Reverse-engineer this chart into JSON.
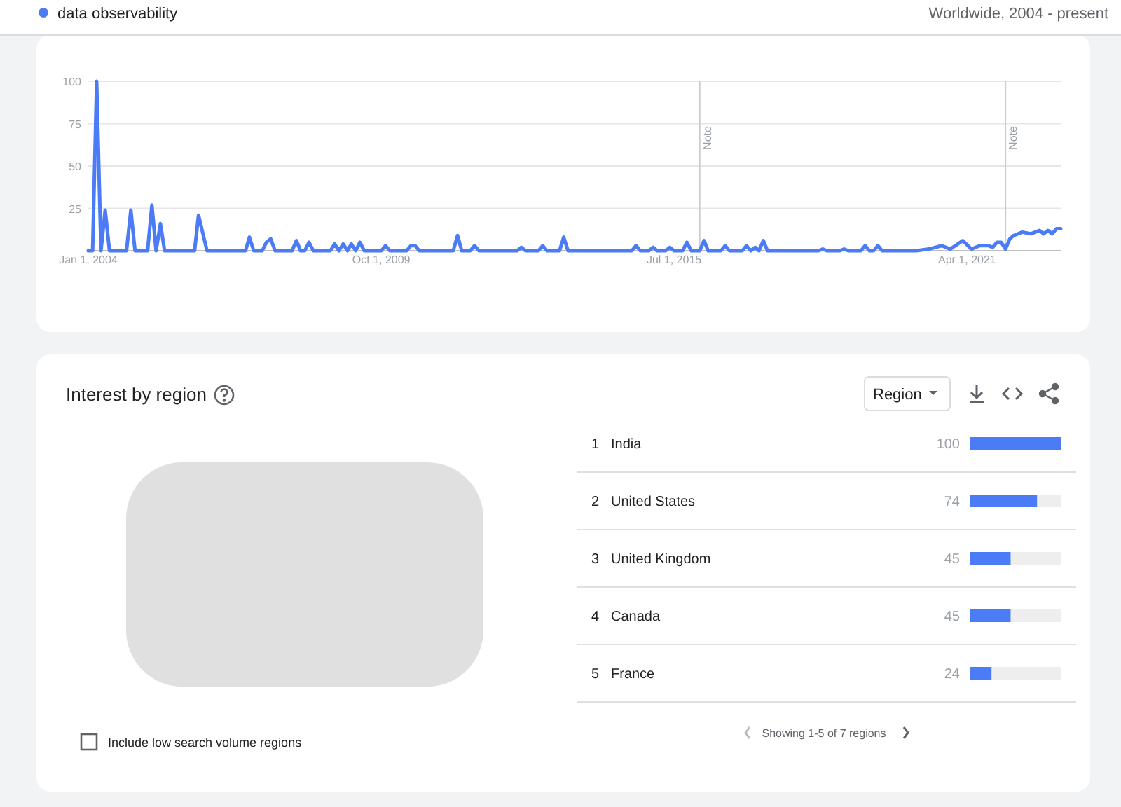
{
  "chart_data": [
    {
      "type": "line",
      "subtitle": "Worldwide, 2004 - present",
      "legend": "top left",
      "grid": "y",
      "x": [
        "2004-01",
        "2004-02",
        "2004-03",
        "2004-04",
        "2004-05",
        "2004-06",
        "2004-10",
        "2004-11",
        "2004-12",
        "2005-03",
        "2005-04",
        "2005-05",
        "2005-06",
        "2005-07",
        "2006-02",
        "2006-03",
        "2006-05",
        "2007-02",
        "2007-03",
        "2007-04",
        "2007-06",
        "2007-07",
        "2007-08",
        "2007-09",
        "2008-01",
        "2008-02",
        "2008-03",
        "2008-04",
        "2008-05",
        "2008-06",
        "2008-10",
        "2008-11",
        "2008-12",
        "2009-01",
        "2009-02",
        "2009-03",
        "2009-04",
        "2009-05",
        "2009-06",
        "2009-10",
        "2009-11",
        "2009-12",
        "2010-04",
        "2010-05",
        "2010-06",
        "2010-07",
        "2011-03",
        "2011-04",
        "2011-05",
        "2011-07",
        "2011-08",
        "2011-09",
        "2012-06",
        "2012-07",
        "2012-08",
        "2012-11",
        "2012-12",
        "2013-01",
        "2013-04",
        "2013-05",
        "2013-06",
        "2014-09",
        "2014-10",
        "2014-11",
        "2015-01",
        "2015-02",
        "2015-03",
        "2015-05",
        "2015-06",
        "2015-07",
        "2015-09",
        "2015-10",
        "2015-11",
        "2016-01",
        "2016-02",
        "2016-03",
        "2016-06",
        "2016-07",
        "2016-08",
        "2016-11",
        "2016-12",
        "2017-01",
        "2017-02",
        "2017-03",
        "2017-04",
        "2017-05",
        "2018-05",
        "2018-06",
        "2018-07",
        "2018-10",
        "2018-11",
        "2018-12",
        "2019-03",
        "2019-04",
        "2019-05",
        "2019-06",
        "2019-07",
        "2019-08",
        "2020-04",
        "2020-07",
        "2020-10",
        "2020-12",
        "2021-03",
        "2021-05",
        "2021-07",
        "2021-09",
        "2021-10",
        "2021-11",
        "2021-12",
        "2022-01",
        "2022-02",
        "2022-03",
        "2022-05",
        "2022-07",
        "2022-08",
        "2022-09",
        "2022-10",
        "2022-11",
        "2022-12",
        "2023-01",
        "2023-02"
      ],
      "series": [
        {
          "name": "data observability",
          "color": "#4b7bf5",
          "values": [
            0,
            0,
            100,
            0,
            24,
            0,
            0,
            24,
            0,
            0,
            27,
            0,
            16,
            0,
            0,
            21,
            0,
            0,
            8,
            0,
            0,
            5,
            7,
            0,
            0,
            6,
            0,
            0,
            5,
            0,
            0,
            4,
            0,
            4,
            0,
            4,
            0,
            5,
            0,
            0,
            3,
            0,
            0,
            3,
            3,
            0,
            0,
            9,
            0,
            0,
            3,
            0,
            0,
            2,
            0,
            0,
            3,
            0,
            0,
            8,
            0,
            0,
            3,
            0,
            0,
            2,
            0,
            0,
            2,
            0,
            0,
            5,
            0,
            0,
            6,
            0,
            0,
            3,
            0,
            0,
            3,
            0,
            2,
            0,
            6,
            0,
            0,
            1,
            0,
            0,
            1,
            0,
            0,
            3,
            0,
            0,
            3,
            0,
            0,
            1,
            3,
            1,
            6,
            1,
            3,
            3,
            2,
            5,
            5,
            1,
            7,
            9,
            11,
            10,
            11,
            12,
            10,
            12,
            10,
            13,
            13
          ]
        }
      ],
      "xlim": [
        "2004-01",
        "2023-02"
      ],
      "xticks": [
        {
          "value": "2004-01-01",
          "label": "Jan 1, 2004"
        },
        {
          "value": "2009-10-01",
          "label": "Oct 1, 2009"
        },
        {
          "value": "2015-07-01",
          "label": "Jul 1, 2015"
        },
        {
          "value": "2021-04-01",
          "label": "Apr 1, 2021"
        }
      ],
      "ylim": [
        0,
        100
      ],
      "yticks": [
        {
          "value": 0,
          "label": null
        },
        25,
        50,
        75,
        100
      ],
      "ref_lines": [
        {
          "axis": "x",
          "value": "2016-01-01",
          "label": "Note",
          "color": "#cccccc"
        },
        {
          "axis": "x",
          "value": "2022-01-01",
          "label": "Note",
          "color": "#cccccc"
        }
      ]
    },
    {
      "type": "bar",
      "orientation": "horizontal",
      "categories": [
        "India",
        "United States",
        "United Kingdom",
        "Canada",
        "France"
      ],
      "values": [
        100,
        74,
        45,
        45,
        24
      ],
      "color": "#4b7bf5",
      "xlim": [
        0,
        100
      ],
      "data_labels": true,
      "annotations": [
        "1",
        "2",
        "3",
        "4",
        "5",
        "Interest by region",
        "Region",
        "Showing 1-5 of 7 regions",
        "Include low search volume regions"
      ]
    }
  ]
}
